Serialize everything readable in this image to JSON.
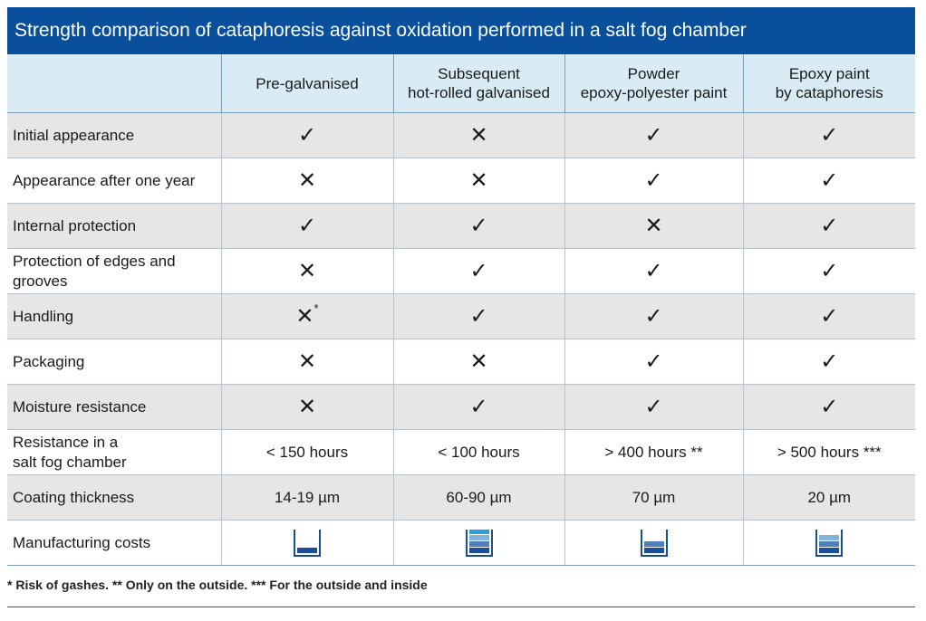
{
  "title": "Strength comparison of cataphoresis against oxidation performed in a salt fog chamber",
  "columns": [
    {
      "line1": "Pre-galvanised",
      "line2": ""
    },
    {
      "line1": "Subsequent",
      "line2": "hot-rolled galvanised"
    },
    {
      "line1": "Powder",
      "line2": "epoxy-polyester paint"
    },
    {
      "line1": "Epoxy paint",
      "line2": "by cataphoresis"
    }
  ],
  "rows": [
    {
      "label": "Initial appearance",
      "cells": [
        {
          "text": "✓",
          "icon": "check-icon"
        },
        {
          "text": "✕",
          "icon": "cross-icon"
        },
        {
          "text": "✓",
          "icon": "check-icon"
        },
        {
          "text": "✓",
          "icon": "check-icon"
        }
      ]
    },
    {
      "label": "Appearance after one year",
      "cells": [
        {
          "text": "✕",
          "icon": "cross-icon"
        },
        {
          "text": "✕",
          "icon": "cross-icon"
        },
        {
          "text": "✓",
          "icon": "check-icon"
        },
        {
          "text": "✓",
          "icon": "check-icon"
        }
      ]
    },
    {
      "label": "Internal protection",
      "cells": [
        {
          "text": "✓",
          "icon": "check-icon"
        },
        {
          "text": "✓",
          "icon": "check-icon"
        },
        {
          "text": "✕",
          "icon": "cross-icon"
        },
        {
          "text": "✓",
          "icon": "check-icon"
        }
      ]
    },
    {
      "label": "Protection of edges and grooves",
      "cells": [
        {
          "text": "✕",
          "icon": "cross-icon"
        },
        {
          "text": "✓",
          "icon": "check-icon"
        },
        {
          "text": "✓",
          "icon": "check-icon"
        },
        {
          "text": "✓",
          "icon": "check-icon"
        }
      ]
    },
    {
      "label": "Handling",
      "cells": [
        {
          "text": "✕",
          "icon": "cross-icon",
          "note": "*"
        },
        {
          "text": "✓",
          "icon": "check-icon"
        },
        {
          "text": "✓",
          "icon": "check-icon"
        },
        {
          "text": "✓",
          "icon": "check-icon"
        }
      ]
    },
    {
      "label": "Packaging",
      "cells": [
        {
          "text": "✕",
          "icon": "cross-icon"
        },
        {
          "text": "✕",
          "icon": "cross-icon"
        },
        {
          "text": "✓",
          "icon": "check-icon"
        },
        {
          "text": "✓",
          "icon": "check-icon"
        }
      ]
    },
    {
      "label": "Moisture resistance",
      "cells": [
        {
          "text": "✕",
          "icon": "cross-icon"
        },
        {
          "text": "✓",
          "icon": "check-icon"
        },
        {
          "text": "✓",
          "icon": "check-icon"
        },
        {
          "text": "✓",
          "icon": "check-icon"
        }
      ]
    },
    {
      "label": "Resistance in a\nsalt fog chamber",
      "cells": [
        {
          "text": "< 150 hours"
        },
        {
          "text": "< 100 hours"
        },
        {
          "text": "> 400 hours **"
        },
        {
          "text": "> 500 hours ***"
        }
      ]
    },
    {
      "label": "Coating thickness",
      "cells": [
        {
          "text": "14-19 µm"
        },
        {
          "text": "60-90 µm"
        },
        {
          "text": "70 µm"
        },
        {
          "text": "20 µm"
        }
      ]
    }
  ],
  "cost_row": {
    "label": "Manufacturing costs",
    "levels": [
      1,
      4,
      2,
      3
    ],
    "level_max": 4,
    "segment_colors": [
      "#1b4f9b",
      "#4f7fbd",
      "#7fb3dc",
      "#2aa0d8"
    ]
  },
  "footnote": "* Risk of gashes.  ** Only on the outside.  *** For the outside and inside",
  "colors": {
    "title_bg": "#0a4f9c",
    "header_bg": "#d9ecf5",
    "stripe_bg": "#e6e6e6"
  }
}
